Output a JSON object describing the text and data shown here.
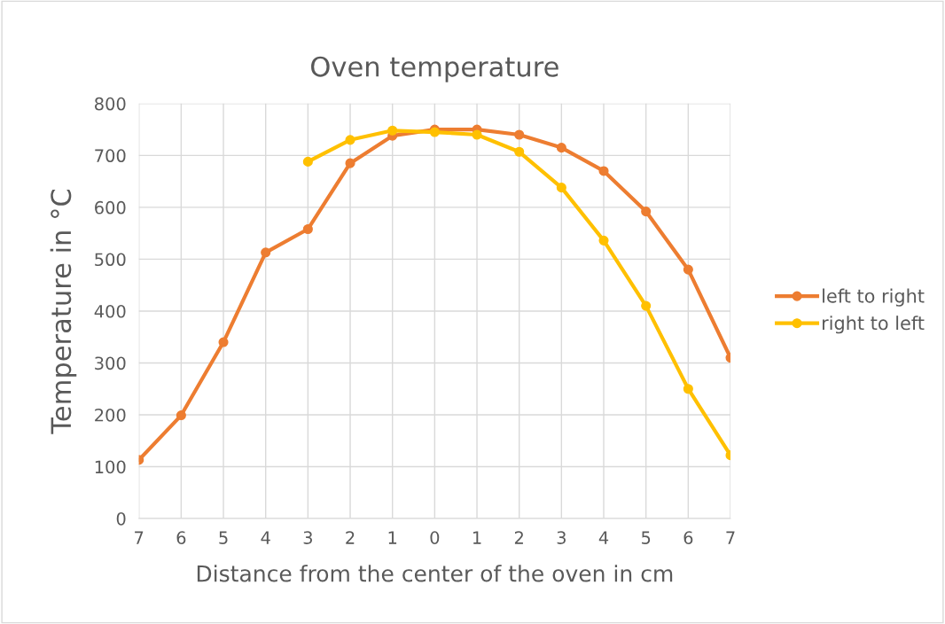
{
  "chart_data": {
    "type": "line",
    "title": "Oven temperature",
    "xlabel": "Distance from the center of the oven in cm",
    "ylabel": "Temperature in °C",
    "categories": [
      "7",
      "6",
      "5",
      "4",
      "3",
      "2",
      "1",
      "0",
      "1",
      "2",
      "3",
      "4",
      "5",
      "6",
      "7"
    ],
    "series": [
      {
        "name": "left to right",
        "color": "#ed7d31",
        "values": [
          113,
          199,
          340,
          513,
          558,
          685,
          738,
          750,
          750,
          740,
          715,
          670,
          592,
          480,
          310
        ]
      },
      {
        "name": "right to left",
        "color": "#ffc000",
        "values": [
          null,
          null,
          null,
          null,
          688,
          730,
          748,
          745,
          740,
          707,
          638,
          536,
          410,
          250,
          122
        ]
      }
    ],
    "ylim": [
      0,
      800
    ],
    "yticks": [
      0,
      100,
      200,
      300,
      400,
      500,
      600,
      700,
      800
    ],
    "grid": true,
    "legend": "right",
    "marker": "circle",
    "line_style": "solid"
  }
}
